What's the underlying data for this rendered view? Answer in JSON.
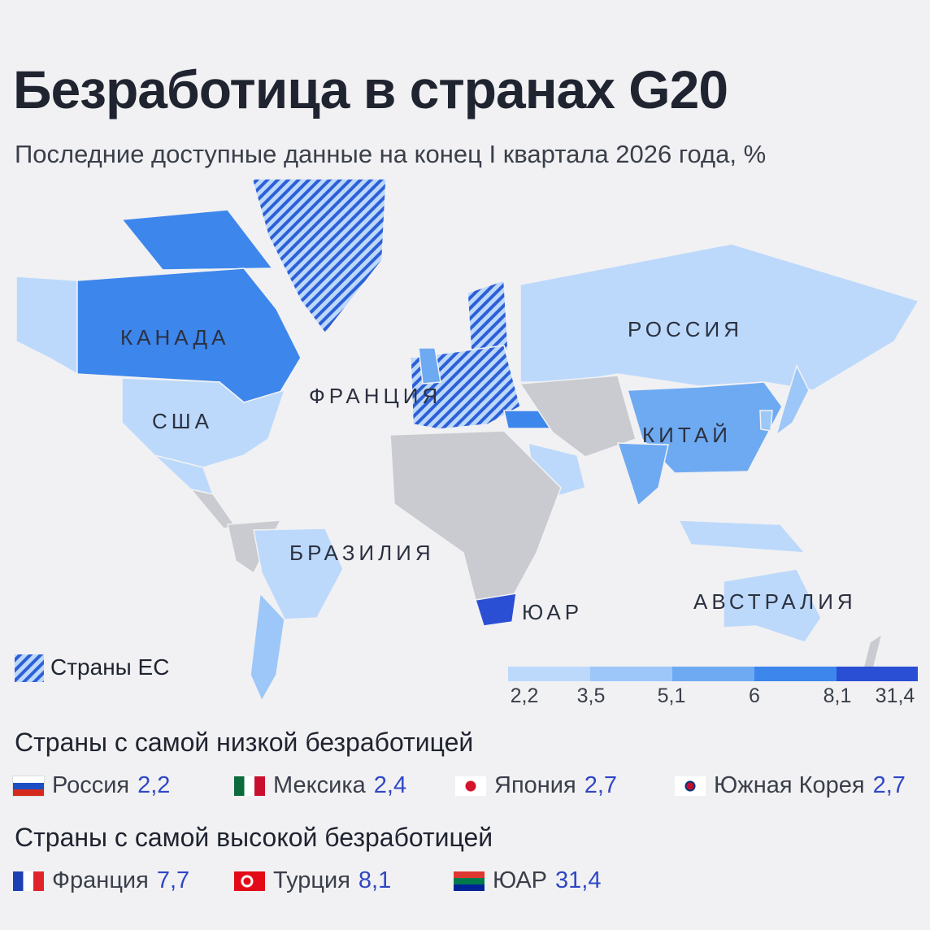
{
  "header": {
    "title": "Безработица в странах G20",
    "subtitle": "Последние доступные данные на конец I квартала 2026 года, %"
  },
  "map": {
    "labels": [
      "КАНАДА",
      "США",
      "ФРАНЦИЯ",
      "РОССИЯ",
      "КИТАЙ",
      "БРАЗИЛИЯ",
      "ЮАР",
      "АВСТРАЛИЯ"
    ]
  },
  "legend": {
    "eu": "Страны ЕС",
    "scale": [
      "2,2",
      "3,5",
      "5,1",
      "6",
      "8,1",
      "31,4"
    ]
  },
  "lowest": {
    "title": "Страны с самой низкой безработицей",
    "items": [
      {
        "country": "Россия",
        "value": "2,2"
      },
      {
        "country": "Мексика",
        "value": "2,4"
      },
      {
        "country": "Япония",
        "value": "2,7"
      },
      {
        "country": "Южная Корея",
        "value": "2,7"
      }
    ]
  },
  "highest": {
    "title": "Страны с самой высокой безработицей",
    "items": [
      {
        "country": "Франция",
        "value": "7,7"
      },
      {
        "country": "Турция",
        "value": "8,1"
      },
      {
        "country": "ЮАР",
        "value": "31,4"
      }
    ]
  }
}
